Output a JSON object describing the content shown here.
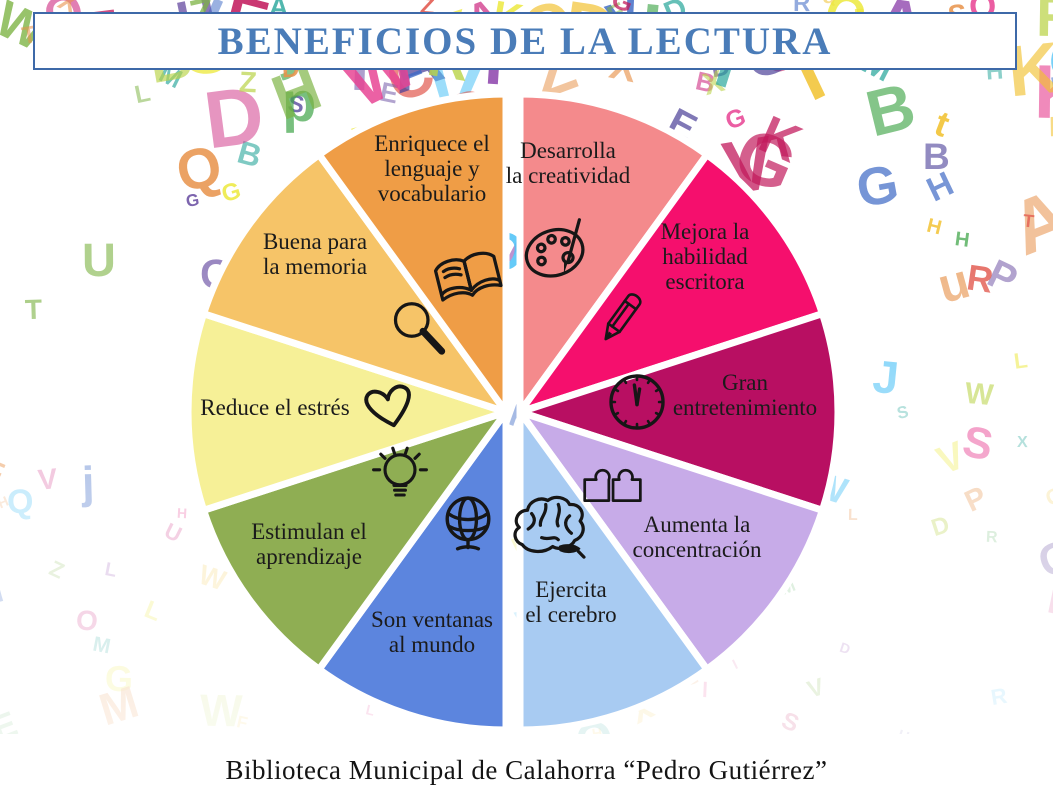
{
  "title": {
    "text": "BENEFICIOS DE LA LECTURA"
  },
  "footer": {
    "text": "Biblioteca Municipal de Calahorra “Pedro Gutiérrez”"
  },
  "colors": {
    "title_text": "#4A7CB8",
    "title_border": "#3E69A8",
    "label_text": "#1B1B1B",
    "icon_stroke": "#161616",
    "background": "#FFFFFF",
    "slice_divider": "#FFFFFF"
  },
  "background": {
    "alphabet": "ABCDEFGHIJKLMNOPQRSTUVWXYZ",
    "palette": [
      "#6A4FA3",
      "#4B3F98",
      "#8E44AD",
      "#D23C8C",
      "#E84393",
      "#C2185B",
      "#E2574C",
      "#E8924A",
      "#F2C230",
      "#EDE93E",
      "#BBD44A",
      "#7CB342",
      "#3FA548",
      "#26A69A",
      "#4FC3F7",
      "#3F6BC6"
    ],
    "count": 240,
    "seed": 42
  },
  "chart_data": {
    "type": "pie",
    "title": "BENEFICIOS DE LA LECTURA",
    "legend": "none",
    "note": "10 equal slices, labels and icons inside slices, white dividers, halves split by vertical gap",
    "slices": [
      {
        "label": "Desarrolla la creatividad",
        "lines": [
          "Desarrolla",
          "la creatividad"
        ],
        "value": 10,
        "color": "#F48A8C",
        "icon": "palette-icon",
        "slug": "creatividad"
      },
      {
        "label": "Mejora la habilidad escritora",
        "lines": [
          "Mejora la",
          "habilidad",
          "escritora"
        ],
        "value": 10,
        "color": "#F50F6D",
        "icon": "pencil-icon",
        "slug": "escritura"
      },
      {
        "label": "Gran entretenimiento",
        "lines": [
          "Gran",
          "entretenimiento"
        ],
        "value": 10,
        "color": "#B80F62",
        "icon": "clock-icon",
        "slug": "entretenimiento"
      },
      {
        "label": "Aumenta la concentración",
        "lines": [
          "Aumenta la",
          "concentración"
        ],
        "value": 10,
        "color": "#C7ABE8",
        "icon": "puzzle-icon",
        "slug": "concentracion"
      },
      {
        "label": "Ejercita el cerebro",
        "lines": [
          "Ejercita",
          "el cerebro"
        ],
        "value": 10,
        "color": "#A8CBF2",
        "icon": "brain-icon",
        "slug": "cerebro"
      },
      {
        "label": "Son ventanas al mundo",
        "lines": [
          "Son ventanas",
          "al mundo"
        ],
        "value": 10,
        "color": "#5C85DE",
        "icon": "globe-icon",
        "slug": "mundo"
      },
      {
        "label": "Estimulan el aprendizaje",
        "lines": [
          "Estimulan el",
          "aprendizaje"
        ],
        "value": 10,
        "color": "#8FAE53",
        "icon": "lightbulb-icon",
        "slug": "aprendizaje"
      },
      {
        "label": "Reduce el estrés",
        "lines": [
          "Reduce el estrés"
        ],
        "value": 10,
        "color": "#F6F097",
        "icon": "heart-icon",
        "slug": "estres"
      },
      {
        "label": "Buena para la memoria",
        "lines": [
          "Buena para",
          "la memoria"
        ],
        "value": 10,
        "color": "#F6C468",
        "icon": "magnifier-icon",
        "slug": "memoria"
      },
      {
        "label": "Enriquece el lenguaje y vocabulario",
        "lines": [
          "Enriquece el",
          "lenguaje y",
          "vocabulario"
        ],
        "value": 10,
        "color": "#EF9D46",
        "icon": "book-icon",
        "slug": "vocabulario"
      }
    ]
  }
}
